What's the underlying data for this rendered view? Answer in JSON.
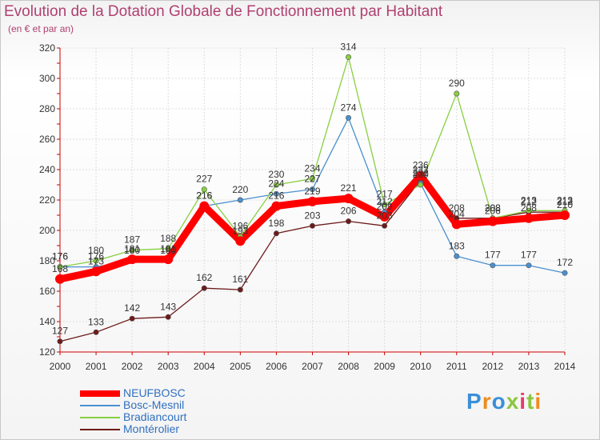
{
  "title": "Evolution de la Dotation Globale de Fonctionnement par Habitant",
  "subtitle": "(en € et par an)",
  "brand": "Proxiti",
  "chart_data": {
    "type": "line",
    "x": [
      "2000",
      "2001",
      "2002",
      "2003",
      "2004",
      "2005",
      "2006",
      "2007",
      "2008",
      "2009",
      "2010",
      "2011",
      "2012",
      "2013",
      "2014"
    ],
    "ylim": [
      120,
      320
    ],
    "yticks": [
      "120",
      "140",
      "160",
      "180",
      "200",
      "220",
      "240",
      "260",
      "280",
      "300",
      "320"
    ],
    "series": [
      {
        "name": "NEUFBOSC",
        "color": "#ff0000",
        "values": [
          168,
          173,
          181,
          181,
          216,
          193,
          216,
          219,
          221,
          209,
          236,
          204,
          206,
          208,
          210
        ],
        "labels": [
          "168",
          "173",
          "181",
          "181",
          "216",
          "193",
          "216",
          "219",
          "221",
          "209",
          "236",
          "204",
          "206",
          "208",
          "210"
        ]
      },
      {
        "name": "Bosc-Mesnil",
        "color": "#4a90d0",
        "values": [
          176,
          176,
          180,
          180,
          216,
          220,
          224,
          227,
          274,
          212,
          231,
          183,
          177,
          177,
          172
        ],
        "labels": [
          "176",
          "176",
          "180",
          "180",
          "216",
          "220",
          "224",
          "227",
          "274",
          "212",
          "231",
          "183",
          "177",
          "177",
          "172"
        ]
      },
      {
        "name": "Bradiancourt",
        "color": "#88d040",
        "values": [
          176,
          180,
          187,
          188,
          227,
          196,
          230,
          234,
          314,
          217,
          230,
          290,
          208,
          213,
          213
        ],
        "labels": [
          "176",
          "180",
          "187",
          "188",
          "227",
          "196",
          "230",
          "234",
          "314",
          "217",
          "230",
          "290",
          "208",
          "213",
          "213"
        ]
      },
      {
        "name": "Montérolier",
        "color": "#6e1a1a",
        "values": [
          127,
          133,
          142,
          143,
          162,
          161,
          198,
          203,
          206,
          203,
          233,
          208,
          208,
          212,
          212
        ],
        "labels": [
          "127",
          "133",
          "142",
          "143",
          "162",
          "161",
          "198",
          "203",
          "206",
          "203",
          "233",
          "208",
          "208",
          "212",
          "212"
        ]
      }
    ]
  }
}
